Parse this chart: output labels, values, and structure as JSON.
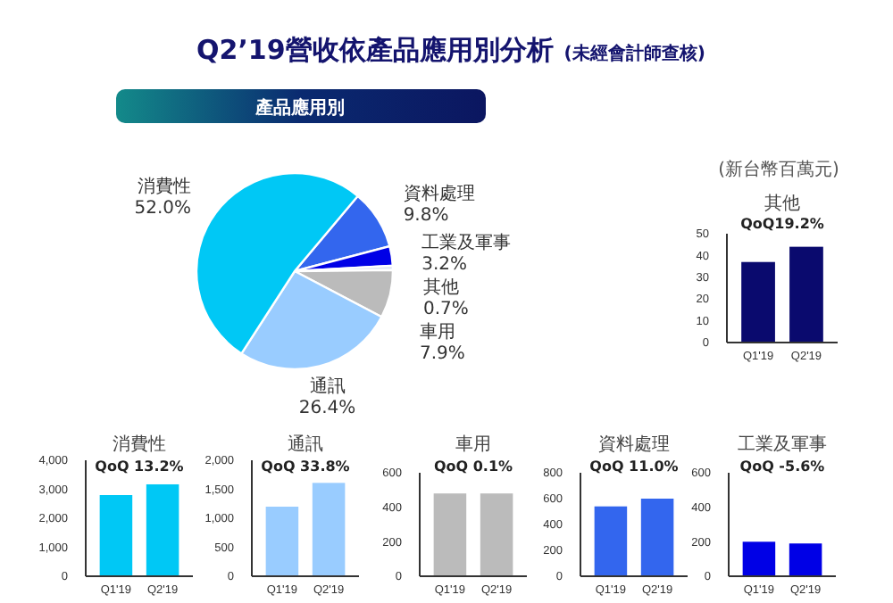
{
  "chart_data": [
    {
      "type": "pie",
      "title": "Q2’19營收依產品應用別分析",
      "subtitle": "產品應用別",
      "annotations": [
        "(未經會計師查核)"
      ],
      "categories": [
        "資料處理",
        "工業及軍事",
        "其他",
        "車用",
        "通訊",
        "消費性"
      ],
      "values": [
        9.8,
        3.2,
        0.7,
        7.9,
        26.4,
        52.0
      ],
      "value_labels": [
        "9.8%",
        "3.2%",
        "0.7%",
        "7.9%",
        "26.4%",
        "52.0%"
      ],
      "colors": [
        "#3366ee",
        "#0000e6",
        "#dde4f4",
        "#bbbbbb",
        "#99ccff",
        "#00c8f5"
      ]
    },
    {
      "type": "bar",
      "title": "其他",
      "subtitle": "QoQ19.2%",
      "annotations": [
        "(新台幣百萬元)"
      ],
      "categories": [
        "Q1'19",
        "Q2'19"
      ],
      "values": [
        37,
        44
      ],
      "color": "#0a0a6e",
      "ylim": [
        0,
        50
      ],
      "yticks": [
        0,
        10,
        20,
        30,
        40,
        50
      ]
    },
    {
      "type": "bar",
      "title": "消費性",
      "subtitle": "QoQ 13.2%",
      "categories": [
        "Q1'19",
        "Q2'19"
      ],
      "values": [
        2800,
        3170
      ],
      "color": "#00c8f5",
      "ylim": [
        0,
        4000
      ],
      "yticks": [
        0,
        {
          "value": 1000,
          "label": "1,000"
        },
        {
          "value": 2000,
          "label": "2,000"
        },
        {
          "value": 3000,
          "label": "3,000"
        },
        {
          "value": 4000,
          "label": "4,000"
        }
      ]
    },
    {
      "type": "bar",
      "title": "通訊",
      "subtitle": "QoQ 33.8%",
      "categories": [
        "Q1'19",
        "Q2'19"
      ],
      "values": [
        1200,
        1610
      ],
      "color": "#99ccff",
      "ylim": [
        0,
        2000
      ],
      "yticks": [
        0,
        500,
        {
          "value": 1000,
          "label": "1,000"
        },
        {
          "value": 1500,
          "label": "1,500"
        },
        {
          "value": 2000,
          "label": "2,000"
        }
      ]
    },
    {
      "type": "bar",
      "title": "車用",
      "subtitle": "QoQ 0.1%",
      "categories": [
        "Q1'19",
        "Q2'19"
      ],
      "values": [
        480,
        480
      ],
      "color": "#bbbbbb",
      "ylim": [
        0,
        600
      ],
      "yticks": [
        0,
        200,
        400,
        600
      ]
    },
    {
      "type": "bar",
      "title": "資料處理",
      "subtitle": "QoQ 11.0%",
      "categories": [
        "Q1'19",
        "Q2'19"
      ],
      "values": [
        540,
        600
      ],
      "color": "#3366ee",
      "ylim": [
        0,
        800
      ],
      "yticks": [
        0,
        200,
        400,
        600,
        800
      ]
    },
    {
      "type": "bar",
      "title": "工業及軍事",
      "subtitle": "QoQ -5.6%",
      "categories": [
        "Q1'19",
        "Q2'19"
      ],
      "values": [
        200,
        190
      ],
      "color": "#0000e6",
      "ylim": [
        0,
        600
      ],
      "yticks": [
        0,
        200,
        400,
        600
      ]
    }
  ]
}
